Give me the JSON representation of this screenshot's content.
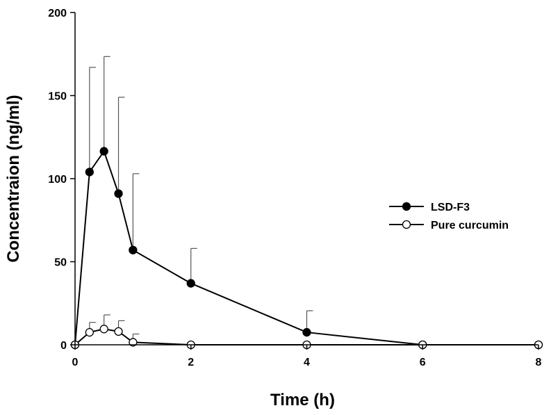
{
  "chart_data": {
    "type": "line",
    "title": "",
    "xlabel": "Time (h)",
    "ylabel": "Concentraion (ng/ml)",
    "xlim": [
      0,
      8
    ],
    "ylim": [
      0,
      200
    ],
    "xticks": [
      "0",
      "2",
      "4",
      "6",
      "8"
    ],
    "yticks": [
      "0",
      "50",
      "100",
      "150",
      "200"
    ],
    "grid": false,
    "legend_position": "right",
    "series": [
      {
        "name": "LSD-F3",
        "marker": "filled-circle",
        "color": "#000000",
        "x": [
          0,
          0.25,
          0.5,
          0.75,
          1,
          2,
          4,
          6,
          8
        ],
        "y": [
          0,
          104,
          116.5,
          91,
          57,
          37,
          7.5,
          0,
          0
        ],
        "error_upper": [
          0,
          63,
          57,
          58,
          46,
          21,
          13,
          0,
          0
        ]
      },
      {
        "name": "Pure curcumin",
        "marker": "open-circle",
        "color": "#000000",
        "x": [
          0,
          0.25,
          0.5,
          0.75,
          1,
          2,
          4,
          6,
          8
        ],
        "y": [
          0,
          7.5,
          9.5,
          8,
          1.5,
          0,
          0,
          0,
          0
        ],
        "error_upper": [
          0,
          6,
          8.5,
          6.5,
          5,
          0,
          0,
          0,
          0
        ]
      }
    ]
  }
}
